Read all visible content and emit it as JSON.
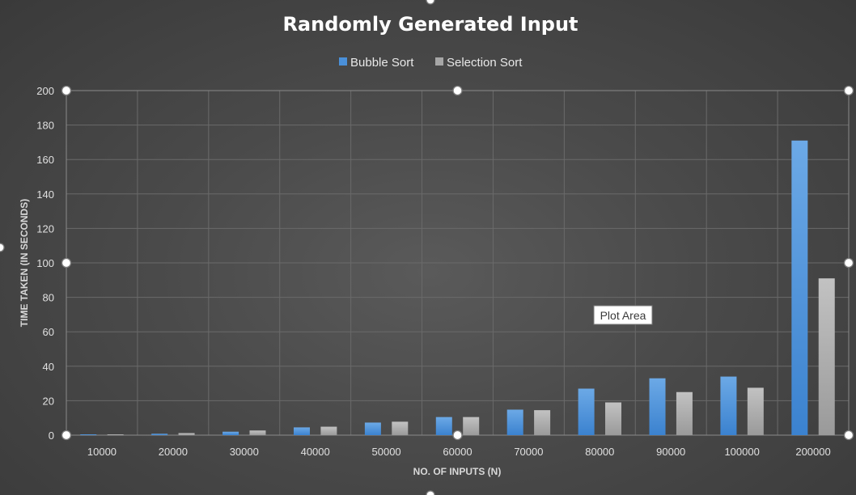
{
  "chart_data": {
    "type": "bar",
    "title": "Randomly Generated Input",
    "xlabel": "NO. OF INPUTS (N)",
    "ylabel": "TIME TAKEN (IN SECONDS)",
    "ylim": [
      0,
      200
    ],
    "yticks": [
      0,
      20,
      40,
      60,
      80,
      100,
      120,
      140,
      160,
      180,
      200
    ],
    "grid": true,
    "legend_position": "top-center",
    "categories": [
      "10000",
      "20000",
      "30000",
      "40000",
      "50000",
      "60000",
      "70000",
      "80000",
      "90000",
      "100000",
      "200000"
    ],
    "series": [
      {
        "name": "Bubble Sort",
        "color": "#4a90d9",
        "values": [
          0.2,
          0.8,
          2.0,
          4.5,
          7.3,
          10.5,
          14.8,
          27.0,
          33.0,
          34.0,
          171.0
        ]
      },
      {
        "name": "Selection Sort",
        "color": "#a6a6a6",
        "values": [
          0.3,
          1.2,
          2.7,
          4.9,
          7.8,
          10.5,
          14.5,
          19.0,
          25.0,
          27.5,
          91.0
        ]
      }
    ]
  },
  "tooltip": {
    "label": "Plot Area"
  }
}
